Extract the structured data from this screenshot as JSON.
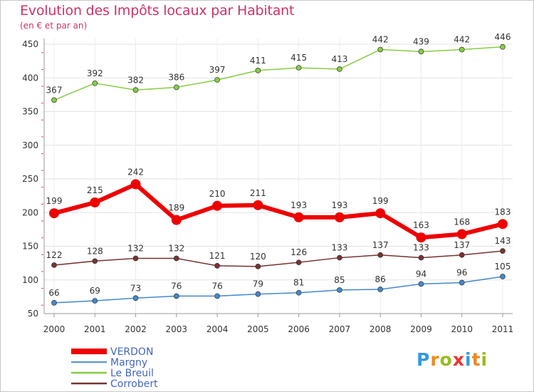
{
  "chart_data": {
    "type": "line",
    "title": "Evolution des Impôts locaux par Habitant",
    "subtitle": "(en € et par an)",
    "xlabel": "",
    "ylabel": "",
    "categories": [
      "2000",
      "2001",
      "2002",
      "2003",
      "2004",
      "2005",
      "2006",
      "2007",
      "2008",
      "2009",
      "2010",
      "2011"
    ],
    "ylim": [
      50,
      450
    ],
    "yticks": [
      50,
      100,
      150,
      200,
      250,
      300,
      350,
      400,
      450
    ],
    "grid": true,
    "legend_position": "bottom-left",
    "series": [
      {
        "name": "Le Breuil",
        "color": "#88cc44",
        "values": [
          367,
          392,
          382,
          386,
          397,
          411,
          415,
          413,
          442,
          439,
          442,
          446
        ]
      },
      {
        "name": "VERDON",
        "color": "#ee0000",
        "values": [
          199,
          215,
          242,
          189,
          210,
          211,
          193,
          193,
          199,
          163,
          168,
          183
        ]
      },
      {
        "name": "Corrobert",
        "color": "#773333",
        "values": [
          122,
          128,
          132,
          132,
          121,
          120,
          126,
          133,
          137,
          133,
          137,
          143
        ]
      },
      {
        "name": "Margny",
        "color": "#4488cc",
        "values": [
          66,
          69,
          73,
          76,
          76,
          79,
          81,
          85,
          86,
          94,
          96,
          105
        ]
      }
    ],
    "legend": [
      {
        "name": "VERDON",
        "color": "#ee0000",
        "text_color": "#4466bb"
      },
      {
        "name": "Margny",
        "color": "#6699cc",
        "text_color": "#4466bb"
      },
      {
        "name": "Le Breuil",
        "color": "#88cc44",
        "text_color": "#4466bb"
      },
      {
        "name": "Corrobert",
        "color": "#773333",
        "text_color": "#4466bb"
      }
    ]
  },
  "brand": {
    "letters": [
      "P",
      "r",
      "o",
      "x",
      "i",
      "t",
      "i"
    ],
    "colors": [
      "#3399dd",
      "#ee8822",
      "#99bb22",
      "#ee3333",
      "#3399dd",
      "#ee8822",
      "#99bb22"
    ]
  }
}
